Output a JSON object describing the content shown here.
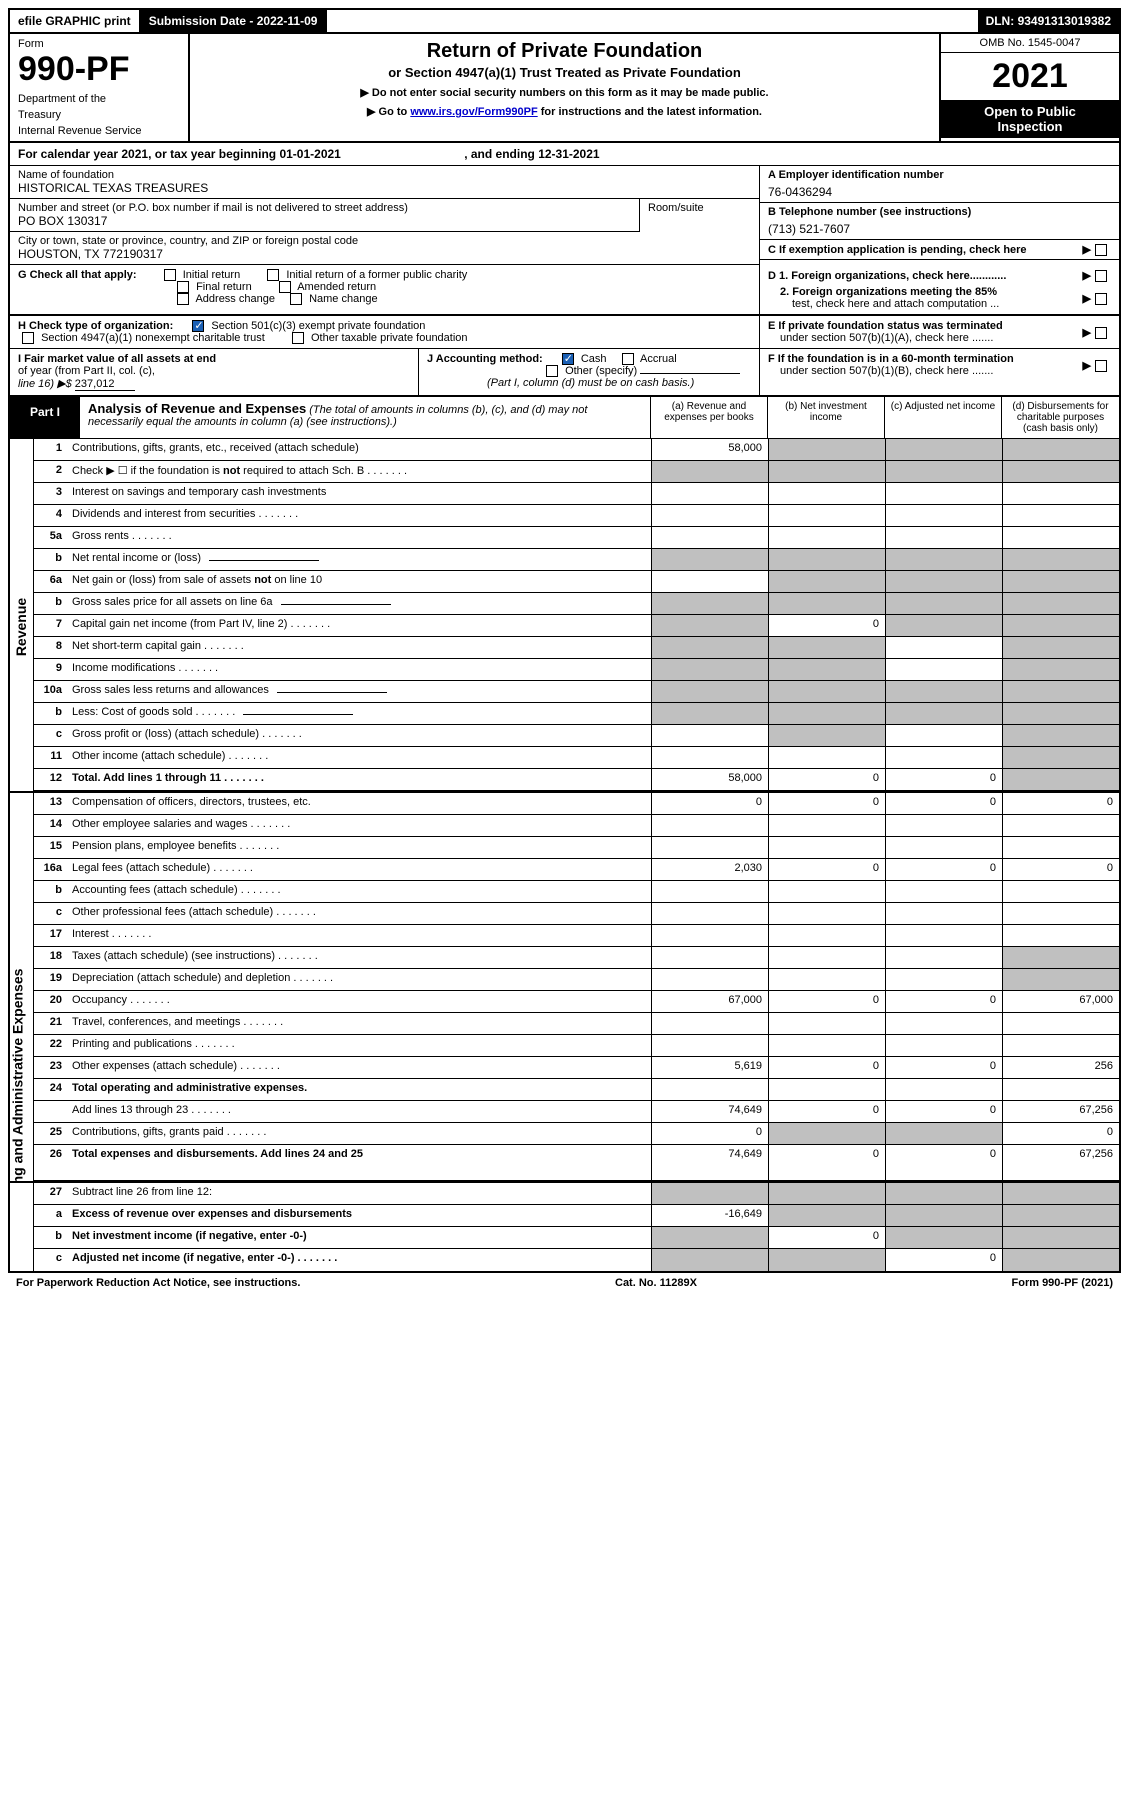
{
  "topbar": {
    "efile": "efile GRAPHIC print",
    "subdate_label": "Submission Date - ",
    "subdate": "2022-11-09",
    "dln_label": "DLN: ",
    "dln": "93491313019382"
  },
  "header": {
    "form_label": "Form",
    "form_no": "990-PF",
    "dept1": "Department of the",
    "dept2": "Treasury",
    "dept3": "Internal Revenue Service",
    "title": "Return of Private Foundation",
    "subtitle": "or Section 4947(a)(1) Trust Treated as Private Foundation",
    "instr1": "▶ Do not enter social security numbers on this form as it may be made public.",
    "instr2_pre": "▶ Go to ",
    "instr2_link": "www.irs.gov/Form990PF",
    "instr2_post": " for instructions and the latest information.",
    "omb": "OMB No. 1545-0047",
    "year": "2021",
    "open1": "Open to Public",
    "open2": "Inspection"
  },
  "cal": {
    "text1": "For calendar year 2021, or tax year beginning ",
    "begin": "01-01-2021",
    "text2": ", and ending ",
    "end": "12-31-2021"
  },
  "entity": {
    "name_lbl": "Name of foundation",
    "name": "HISTORICAL TEXAS TREASURES",
    "addr_lbl": "Number and street (or P.O. box number if mail is not delivered to street address)",
    "addr": "PO BOX 130317",
    "room_lbl": "Room/suite",
    "city_lbl": "City or town, state or province, country, and ZIP or foreign postal code",
    "city": "HOUSTON, TX  772190317",
    "ein_lbl": "A Employer identification number",
    "ein": "76-0436294",
    "tel_lbl": "B Telephone number (see instructions)",
    "tel": "(713) 521-7607",
    "c_lbl": "C If exemption application is pending, check here"
  },
  "g": {
    "label": "G Check all that apply:",
    "opts": [
      "Initial return",
      "Initial return of a former public charity",
      "Final return",
      "Amended return",
      "Address change",
      "Name change"
    ]
  },
  "d": {
    "d1": "D 1. Foreign organizations, check here............",
    "d2a": "2. Foreign organizations meeting the 85%",
    "d2b": "test, check here and attach computation ..."
  },
  "h": {
    "label": "H Check type of organization:",
    "o1": "Section 501(c)(3) exempt private foundation",
    "o2": "Section 4947(a)(1) nonexempt charitable trust",
    "o3": "Other taxable private foundation"
  },
  "e": {
    "e1": "E  If private foundation status was terminated",
    "e2": "under section 507(b)(1)(A), check here ......."
  },
  "i": {
    "lbl1": "I Fair market value of all assets at end",
    "lbl2": "of year (from Part II, col. (c),",
    "lbl3": "line 16) ▶$ ",
    "val": "237,012"
  },
  "j": {
    "lbl": "J Accounting method:",
    "cash": "Cash",
    "accrual": "Accrual",
    "other": "Other (specify)",
    "note": "(Part I, column (d) must be on cash basis.)"
  },
  "f": {
    "f1": "F  If the foundation is in a 60-month termination",
    "f2": "under section 507(b)(1)(B), check here ......."
  },
  "part1": {
    "tag": "Part I",
    "title": "Analysis of Revenue and Expenses",
    "note": " (The total of amounts in columns (b), (c), and (d) may not necessarily equal the amounts in column (a) (see instructions).)",
    "cols": {
      "a": "(a)   Revenue and expenses per books",
      "b": "(b)   Net investment income",
      "c": "(c)   Adjusted net income",
      "d": "(d)   Disbursements for charitable purposes (cash basis only)"
    }
  },
  "side": {
    "rev": "Revenue",
    "exp": "Operating and Administrative Expenses"
  },
  "rows": [
    {
      "n": "1",
      "d": "Contributions, gifts, grants, etc., received (attach schedule)",
      "a": "58,000",
      "grey_bcd": true
    },
    {
      "n": "2",
      "d": "Check ▶ ☐ if the foundation is not required to attach Sch. B",
      "dots": true,
      "allgrey": true,
      "nb": true
    },
    {
      "n": "3",
      "d": "Interest on savings and temporary cash investments"
    },
    {
      "n": "4",
      "d": "Dividends and interest from securities",
      "dots": true
    },
    {
      "n": "5a",
      "d": "Gross rents",
      "dots": true
    },
    {
      "n": "b",
      "d": "Net rental income or (loss)",
      "sub": true,
      "allgrey": true
    },
    {
      "n": "6a",
      "d": "Net gain or (loss) from sale of assets not on line 10",
      "grey_bcd": true
    },
    {
      "n": "b",
      "d": "Gross sales price for all assets on line 6a",
      "sub": true,
      "allgrey": true
    },
    {
      "n": "7",
      "d": "Capital gain net income (from Part IV, line 2)",
      "dots": true,
      "grey_a": true,
      "b": "0",
      "grey_cd": true
    },
    {
      "n": "8",
      "d": "Net short-term capital gain",
      "dots": true,
      "grey_ab": true,
      "grey_d": true
    },
    {
      "n": "9",
      "d": "Income modifications",
      "dots": true,
      "grey_abd": true
    },
    {
      "n": "10a",
      "d": "Gross sales less returns and allowances",
      "sub": true,
      "allgrey": true,
      "nb": true
    },
    {
      "n": "b",
      "d": "Less: Cost of goods sold",
      "dots": true,
      "sub": true,
      "allgrey": true
    },
    {
      "n": "c",
      "d": "Gross profit or (loss) (attach schedule)",
      "dots": true,
      "grey_bd": true
    },
    {
      "n": "11",
      "d": "Other income (attach schedule)",
      "dots": true,
      "grey_d": true
    },
    {
      "n": "12",
      "d": "Total. Add lines 1 through 11",
      "dots": true,
      "bold": true,
      "a": "58,000",
      "b": "0",
      "c": "0",
      "grey_d": true
    }
  ],
  "exp_rows": [
    {
      "n": "13",
      "d": "Compensation of officers, directors, trustees, etc.",
      "a": "0",
      "b": "0",
      "c": "0",
      "dd": "0"
    },
    {
      "n": "14",
      "d": "Other employee salaries and wages",
      "dots": true
    },
    {
      "n": "15",
      "d": "Pension plans, employee benefits",
      "dots": true
    },
    {
      "n": "16a",
      "d": "Legal fees (attach schedule)",
      "dots": true,
      "a": "2,030",
      "b": "0",
      "c": "0",
      "dd": "0"
    },
    {
      "n": "b",
      "d": "Accounting fees (attach schedule)",
      "dots": true
    },
    {
      "n": "c",
      "d": "Other professional fees (attach schedule)",
      "dots": true
    },
    {
      "n": "17",
      "d": "Interest",
      "dots": true
    },
    {
      "n": "18",
      "d": "Taxes (attach schedule) (see instructions)",
      "dots": true,
      "grey_d": true
    },
    {
      "n": "19",
      "d": "Depreciation (attach schedule) and depletion",
      "dots": true,
      "grey_d": true
    },
    {
      "n": "20",
      "d": "Occupancy",
      "dots": true,
      "a": "67,000",
      "b": "0",
      "c": "0",
      "dd": "67,000"
    },
    {
      "n": "21",
      "d": "Travel, conferences, and meetings",
      "dots": true
    },
    {
      "n": "22",
      "d": "Printing and publications",
      "dots": true
    },
    {
      "n": "23",
      "d": "Other expenses (attach schedule)",
      "dots": true,
      "a": "5,619",
      "b": "0",
      "c": "0",
      "dd": "256"
    },
    {
      "n": "24",
      "d": "Total operating and administrative expenses.",
      "bold": true,
      "nb": true,
      "noamt": true
    },
    {
      "n": "",
      "d": "Add lines 13 through 23",
      "dots": true,
      "a": "74,649",
      "b": "0",
      "c": "0",
      "dd": "67,256"
    },
    {
      "n": "25",
      "d": "Contributions, gifts, grants paid",
      "dots": true,
      "a": "0",
      "grey_bc": true,
      "dd": "0"
    },
    {
      "n": "26",
      "d": "Total expenses and disbursements. Add lines 24 and 25",
      "bold": true,
      "a": "74,649",
      "b": "0",
      "c": "0",
      "dd": "67,256",
      "tall": true
    }
  ],
  "net_rows": [
    {
      "n": "27",
      "d": "Subtract line 26 from line 12:",
      "allgrey": true
    },
    {
      "n": "a",
      "d": "Excess of revenue over expenses and disbursements",
      "bold": true,
      "a": "-16,649",
      "grey_bcd": true
    },
    {
      "n": "b",
      "d": "Net investment income (if negative, enter -0-)",
      "bold": true,
      "grey_a": true,
      "b": "0",
      "grey_cd": true
    },
    {
      "n": "c",
      "d": "Adjusted net income (if negative, enter -0-)",
      "dots": true,
      "bold": true,
      "grey_ab": true,
      "c": "0",
      "grey_d": true,
      "last": true
    }
  ],
  "footer": {
    "left": "For Paperwork Reduction Act Notice, see instructions.",
    "mid": "Cat. No. 11289X",
    "right": "Form 990-PF (2021)"
  }
}
